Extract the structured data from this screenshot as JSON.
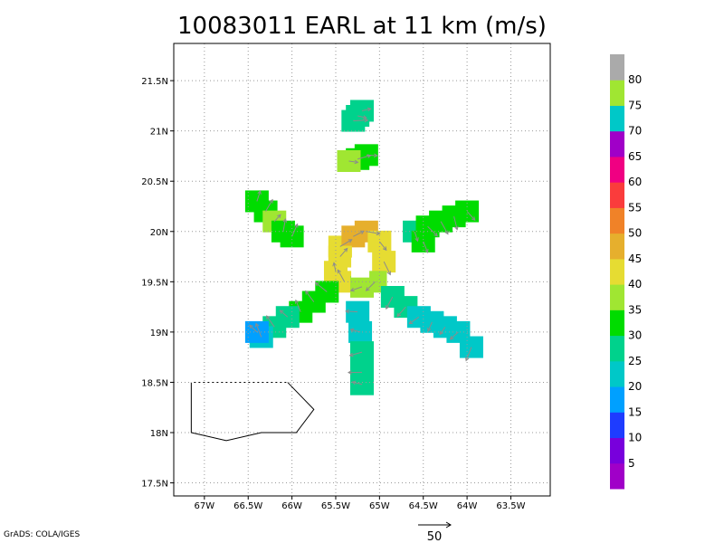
{
  "chart_data": {
    "type": "heatmap",
    "title": "10083011 EARL at 11 km (m/s)",
    "x_axis": {
      "ticks": [
        {
          "value": -67.0,
          "label": "67W"
        },
        {
          "value": -66.5,
          "label": "66.5W"
        },
        {
          "value": -66.0,
          "label": "66W"
        },
        {
          "value": -65.5,
          "label": "65.5W"
        },
        {
          "value": -65.0,
          "label": "65W"
        },
        {
          "value": -64.5,
          "label": "64.5W"
        },
        {
          "value": -64.0,
          "label": "64W"
        },
        {
          "value": -63.5,
          "label": "63.5W"
        }
      ],
      "range": [
        -67.35,
        -63.05
      ]
    },
    "y_axis": {
      "ticks": [
        {
          "value": 17.5,
          "label": "17.5N"
        },
        {
          "value": 18.0,
          "label": "18N"
        },
        {
          "value": 18.5,
          "label": "18.5N"
        },
        {
          "value": 19.0,
          "label": "19N"
        },
        {
          "value": 19.5,
          "label": "19.5N"
        },
        {
          "value": 20.0,
          "label": "20N"
        },
        {
          "value": 20.5,
          "label": "20.5N"
        },
        {
          "value": 21.0,
          "label": "21N"
        },
        {
          "value": 21.5,
          "label": "21.5N"
        }
      ],
      "range": [
        17.37,
        21.87
      ]
    },
    "grid": true,
    "colorbar": {
      "labels": [
        "5",
        "10",
        "15",
        "20",
        "25",
        "30",
        "35",
        "40",
        "45",
        "50",
        "55",
        "60",
        "65",
        "70",
        "75",
        "80"
      ],
      "colors": [
        "#a000c8",
        "#7800dc",
        "#1e3cff",
        "#00a0ff",
        "#00c8c8",
        "#00d28c",
        "#00dc00",
        "#a0e632",
        "#e6dc32",
        "#e6af2d",
        "#f08228",
        "#fa3c3c",
        "#f00082",
        "#a000c8",
        "#00c8c8",
        "#a0e632",
        "#aaaaaa"
      ]
    },
    "coastline": [
      [
        -67.15,
        18.5
      ],
      [
        -66.05,
        18.5
      ],
      [
        -65.75,
        18.23
      ],
      [
        -65.95,
        18.0
      ],
      [
        -66.35,
        18.0
      ],
      [
        -66.75,
        17.92
      ],
      [
        -67.15,
        18.0
      ],
      [
        -67.15,
        18.5
      ]
    ],
    "coastline_dashed_segment": [
      [
        -67.15,
        18.5
      ],
      [
        -66.05,
        18.5
      ]
    ],
    "wind_speed_cells": [
      {
        "lon": -65.2,
        "lat": 21.2,
        "v": 28
      },
      {
        "lon": -65.3,
        "lat": 21.1,
        "v": 27
      },
      {
        "lon": -65.25,
        "lat": 21.15,
        "v": 28
      },
      {
        "lon": -65.25,
        "lat": 20.72,
        "v": 33
      },
      {
        "lon": -65.15,
        "lat": 20.76,
        "v": 30
      },
      {
        "lon": -65.35,
        "lat": 20.7,
        "v": 35
      },
      {
        "lon": -66.4,
        "lat": 20.3,
        "v": 30
      },
      {
        "lon": -66.3,
        "lat": 20.2,
        "v": 33
      },
      {
        "lon": -66.2,
        "lat": 20.1,
        "v": 35
      },
      {
        "lon": -66.1,
        "lat": 20.0,
        "v": 32
      },
      {
        "lon": -66.0,
        "lat": 19.95,
        "v": 33
      },
      {
        "lon": -64.6,
        "lat": 20.0,
        "v": 29
      },
      {
        "lon": -64.45,
        "lat": 20.05,
        "v": 33
      },
      {
        "lon": -64.3,
        "lat": 20.1,
        "v": 34
      },
      {
        "lon": -64.15,
        "lat": 20.15,
        "v": 33
      },
      {
        "lon": -64.0,
        "lat": 20.2,
        "v": 31
      },
      {
        "lon": -64.5,
        "lat": 19.9,
        "v": 31
      },
      {
        "lon": -65.45,
        "lat": 19.85,
        "v": 40
      },
      {
        "lon": -65.3,
        "lat": 19.95,
        "v": 45
      },
      {
        "lon": -65.15,
        "lat": 20.0,
        "v": 47
      },
      {
        "lon": -65.0,
        "lat": 19.9,
        "v": 44
      },
      {
        "lon": -64.95,
        "lat": 19.7,
        "v": 41
      },
      {
        "lon": -65.5,
        "lat": 19.6,
        "v": 42
      },
      {
        "lon": -65.4,
        "lat": 19.5,
        "v": 40
      },
      {
        "lon": -65.2,
        "lat": 19.45,
        "v": 38
      },
      {
        "lon": -65.05,
        "lat": 19.5,
        "v": 39
      },
      {
        "lon": -65.45,
        "lat": 19.75,
        "v": 44
      },
      {
        "lon": -65.6,
        "lat": 19.4,
        "v": 34
      },
      {
        "lon": -65.75,
        "lat": 19.3,
        "v": 33
      },
      {
        "lon": -65.9,
        "lat": 19.2,
        "v": 32
      },
      {
        "lon": -66.05,
        "lat": 19.15,
        "v": 29
      },
      {
        "lon": -66.2,
        "lat": 19.05,
        "v": 26
      },
      {
        "lon": -66.35,
        "lat": 18.95,
        "v": 20
      },
      {
        "lon": -66.4,
        "lat": 19.0,
        "v": 15
      },
      {
        "lon": -65.25,
        "lat": 19.2,
        "v": 24
      },
      {
        "lon": -65.22,
        "lat": 19.0,
        "v": 22
      },
      {
        "lon": -65.2,
        "lat": 18.8,
        "v": 25
      },
      {
        "lon": -65.2,
        "lat": 18.6,
        "v": 26
      },
      {
        "lon": -65.2,
        "lat": 18.48,
        "v": 29
      },
      {
        "lon": -64.85,
        "lat": 19.35,
        "v": 26
      },
      {
        "lon": -64.7,
        "lat": 19.25,
        "v": 25
      },
      {
        "lon": -64.55,
        "lat": 19.15,
        "v": 24
      },
      {
        "lon": -64.4,
        "lat": 19.1,
        "v": 22
      },
      {
        "lon": -64.25,
        "lat": 19.05,
        "v": 21
      },
      {
        "lon": -64.1,
        "lat": 19.0,
        "v": 23
      },
      {
        "lon": -63.95,
        "lat": 18.85,
        "v": 20
      }
    ],
    "vector_reference": {
      "label": "50"
    },
    "credit": "GrADS: COLA/IGES"
  }
}
